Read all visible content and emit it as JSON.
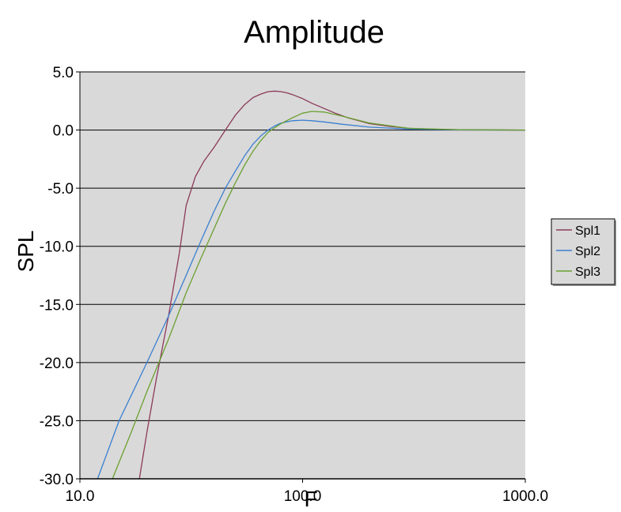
{
  "chart_data": {
    "type": "line",
    "title": "Amplitude",
    "xlabel": "F",
    "ylabel": "SPL",
    "xscale": "log",
    "xlim": [
      10.0,
      1000.0
    ],
    "ylim": [
      -30.0,
      5.0
    ],
    "x_tick_labels": [
      "10.0",
      "100.0",
      "1000.0"
    ],
    "y_tick_labels": [
      "5.0",
      "0.0",
      "-5.0",
      "-10.0",
      "-15.0",
      "-20.0",
      "-25.0",
      "-30.0"
    ],
    "grid": "horizontal",
    "legend_position": "right",
    "plot_background": "#d9d9d9",
    "series": [
      {
        "name": "Spl1",
        "color": "#8b3a5a",
        "x": [
          18.5,
          20,
          22,
          25,
          28,
          30,
          33,
          36,
          40,
          45,
          50,
          55,
          60,
          65,
          70,
          75,
          80,
          85,
          90,
          100,
          110,
          125,
          140,
          160,
          200,
          250,
          300,
          400,
          500,
          700,
          1000
        ],
        "y": [
          -30.0,
          -26.0,
          -21.5,
          -16.0,
          -10.5,
          -6.5,
          -4.0,
          -2.7,
          -1.5,
          0.0,
          1.3,
          2.2,
          2.8,
          3.1,
          3.3,
          3.35,
          3.3,
          3.2,
          3.05,
          2.7,
          2.3,
          1.85,
          1.45,
          1.05,
          0.55,
          0.3,
          0.15,
          0.06,
          0.03,
          0.01,
          0.0
        ]
      },
      {
        "name": "Spl2",
        "color": "#3a7fd0",
        "x": [
          12,
          15,
          20,
          25,
          30,
          35,
          40,
          45,
          50,
          55,
          60,
          65,
          70,
          75,
          80,
          90,
          100,
          110,
          125,
          150,
          200,
          300,
          500,
          1000
        ],
        "y": [
          -30.0,
          -25.0,
          -20.0,
          -16.0,
          -12.5,
          -9.5,
          -7.0,
          -5.0,
          -3.5,
          -2.2,
          -1.2,
          -0.5,
          0.0,
          0.35,
          0.6,
          0.8,
          0.85,
          0.8,
          0.7,
          0.5,
          0.25,
          0.08,
          0.02,
          0.0
        ]
      },
      {
        "name": "Spl3",
        "color": "#6aa030",
        "x": [
          14,
          17,
          20,
          25,
          30,
          35,
          40,
          45,
          50,
          55,
          60,
          65,
          70,
          75,
          80,
          90,
          100,
          110,
          125,
          150,
          200,
          300,
          500,
          1000
        ],
        "y": [
          -30.0,
          -26.0,
          -22.5,
          -18.0,
          -14.0,
          -11.0,
          -8.5,
          -6.3,
          -4.5,
          -3.0,
          -1.8,
          -0.9,
          -0.2,
          0.2,
          0.55,
          1.05,
          1.45,
          1.6,
          1.55,
          1.2,
          0.6,
          0.15,
          0.03,
          0.0
        ]
      }
    ]
  }
}
